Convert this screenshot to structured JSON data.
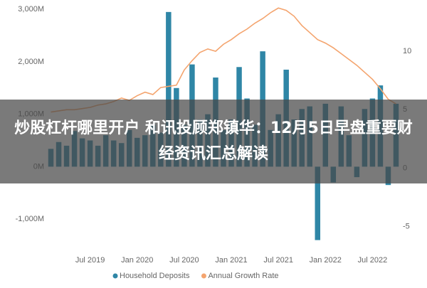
{
  "chart_data": {
    "type": "bar_line",
    "banner": "炒股杠杆哪里开户 和讯投顾郑镇华：12月5日早盘重要财经资讯汇总解读",
    "categories": [
      null,
      null,
      null,
      null,
      null,
      "Jul 2019",
      null,
      null,
      null,
      null,
      null,
      "Jan 2020",
      null,
      null,
      null,
      null,
      null,
      "Jul 2020",
      null,
      null,
      null,
      null,
      null,
      "Jan 2021",
      null,
      null,
      null,
      null,
      null,
      "Jul 2021",
      null,
      null,
      null,
      null,
      null,
      "Jan 2022",
      null,
      null,
      null,
      null,
      null,
      "Jul 2022",
      null,
      null,
      null
    ],
    "series": [
      {
        "name": "Household Deposits",
        "type": "bar",
        "color": "#2f86a6",
        "values": [
          340,
          470,
          400,
          680,
          540,
          500,
          400,
          600,
          500,
          450,
          700,
          550,
          600,
          800,
          650,
          2950,
          1500,
          800,
          1950,
          900,
          1000,
          1700,
          700,
          900,
          1900,
          1300,
          800,
          2200,
          700,
          1000,
          1850,
          900,
          1100,
          1150,
          -1400,
          1200,
          -300,
          1150,
          600,
          -200,
          1100,
          1300,
          1550,
          -350,
          1200
        ]
      },
      {
        "name": "Annual Growth Rate",
        "type": "line",
        "axis": "y2",
        "color": "#f4a46e",
        "values": [
          4.8,
          4.9,
          5.0,
          5.0,
          5.1,
          5.2,
          5.4,
          5.5,
          5.7,
          6.0,
          5.8,
          6.2,
          6.5,
          6.3,
          6.9,
          7.0,
          7.1,
          8.4,
          9.2,
          9.9,
          10.2,
          10.0,
          10.6,
          11.0,
          11.5,
          11.9,
          12.4,
          12.8,
          13.3,
          13.7,
          13.5,
          13.0,
          12.2,
          11.6,
          11.0,
          10.7,
          10.3,
          9.8,
          9.3,
          8.8,
          8.2,
          7.6,
          6.8,
          5.9,
          5.5
        ]
      }
    ],
    "ylim": [
      -1500,
      3070
    ],
    "yticks": [
      {
        "value": -1000,
        "label": "-1,000M"
      },
      {
        "value": 0,
        "label": "0M"
      },
      {
        "value": 1000,
        "label": "1,000M"
      },
      {
        "value": 2000,
        "label": "2,000M"
      },
      {
        "value": 3000,
        "label": "3,000M"
      }
    ],
    "y2lim": [
      -6.6,
      13.9
    ],
    "y2ticks": [
      -5,
      0,
      5,
      10
    ],
    "grid": false
  }
}
